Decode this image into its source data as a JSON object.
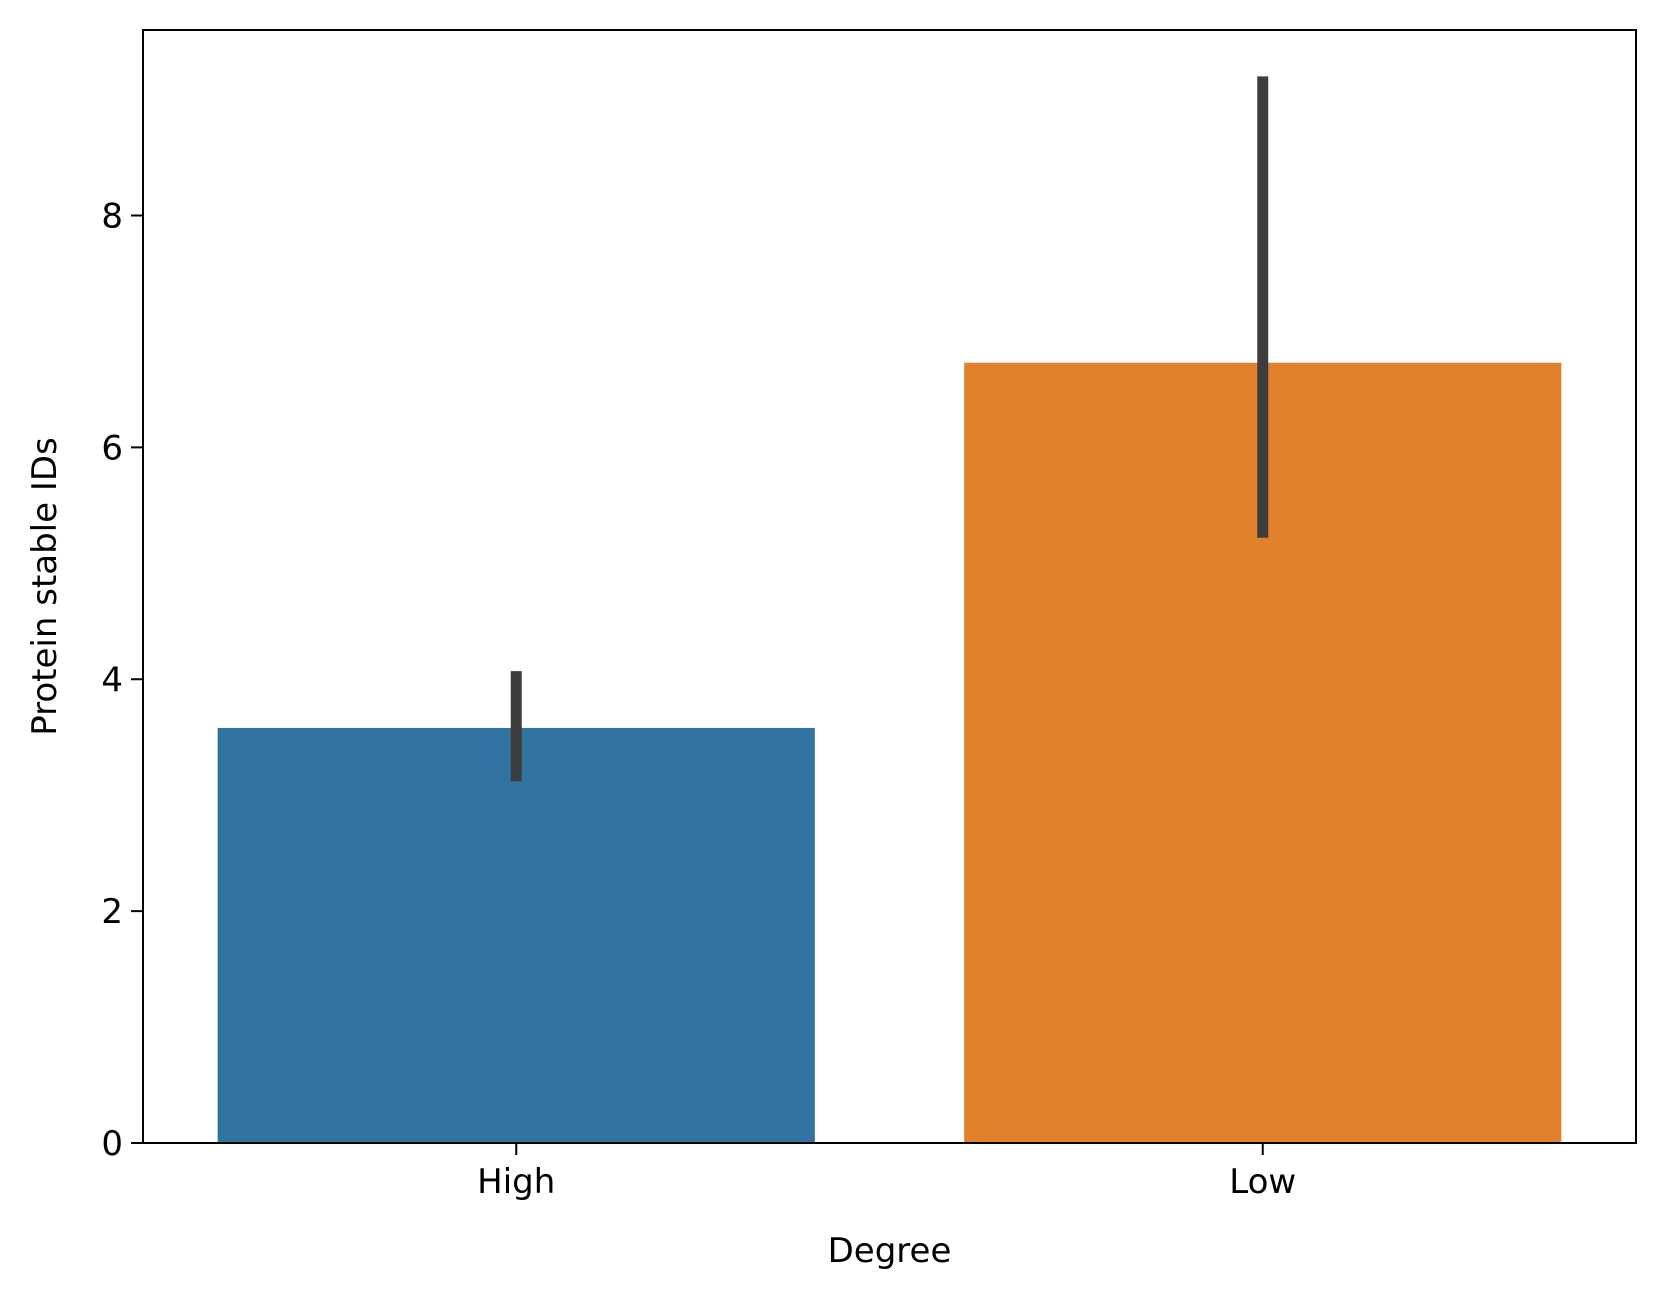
{
  "chart_data": {
    "type": "bar",
    "categories": [
      "High",
      "Low"
    ],
    "values": [
      3.58,
      6.73
    ],
    "error_bars": [
      {
        "low": 3.12,
        "high": 4.07
      },
      {
        "low": 5.22,
        "high": 9.2
      }
    ],
    "colors": [
      "#3274a1",
      "#e1812c"
    ],
    "error_color": "#3d3d3d",
    "xlabel": "Degree",
    "ylabel": "Protein stable IDs",
    "ylim": [
      0,
      9.6
    ],
    "yticks": [
      0,
      2,
      4,
      6,
      8
    ],
    "ytick_labels": [
      "0",
      "2",
      "4",
      "6",
      "8"
    ],
    "grid": false
  }
}
